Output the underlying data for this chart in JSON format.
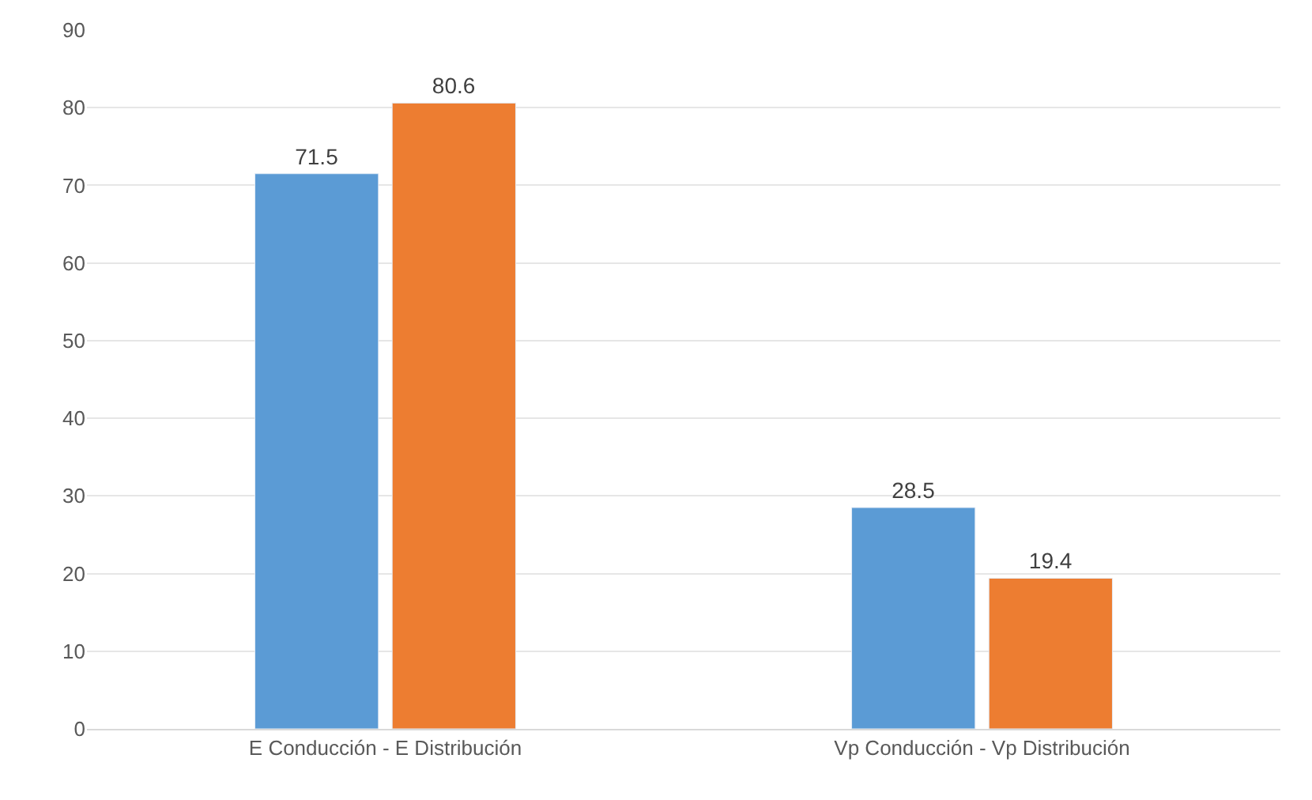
{
  "chart_data": {
    "type": "bar",
    "categories": [
      "E Conducción - E Distribución",
      "Vp Conducción - Vp Distribución"
    ],
    "series": [
      {
        "color": "#5b9bd5",
        "values": [
          71.5,
          28.5
        ]
      },
      {
        "color": "#ed7d31",
        "values": [
          80.6,
          19.4
        ]
      }
    ],
    "ylim": [
      0,
      90
    ],
    "yticks": [
      0,
      10,
      20,
      30,
      40,
      50,
      60,
      70,
      80,
      90
    ],
    "grid": "y",
    "data_labels": true
  }
}
